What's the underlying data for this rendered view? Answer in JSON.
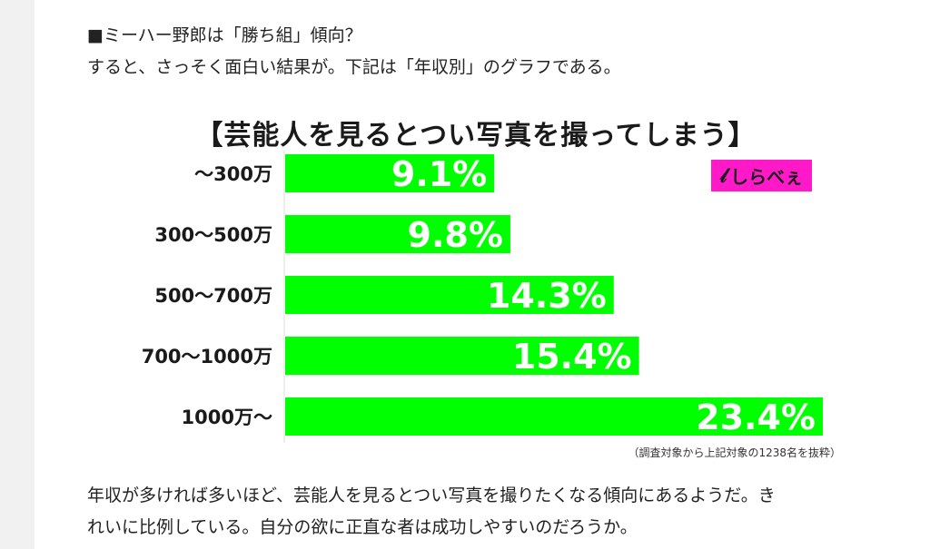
{
  "article": {
    "heading": "■ミーハー野郎は「勝ち組」傾向？",
    "intro": "すると、さっそく面白い結果が。下記は「年収別」のグラフである。",
    "body_line_1": "年収が多ければ多いほど、芸能人を見るとつい写真を撮りたくなる傾向にあるようだ。き",
    "body_line_2": "れいに比例している。自分の欲に正直な者は成功しやすいのだろうか。"
  },
  "logo": {
    "text": "しらべぇ",
    "mark": "ﾑ"
  },
  "chart_data": {
    "type": "bar",
    "orientation": "horizontal",
    "title": "【芸能人を見るとつい写真を撮ってしまう】",
    "categories": [
      "〜300万",
      "300〜500万",
      "500〜700万",
      "700〜1000万",
      "1000万〜"
    ],
    "values": [
      9.1,
      9.8,
      14.3,
      15.4,
      23.4
    ],
    "value_labels": [
      "9.1%",
      "9.8%",
      "14.3%",
      "15.4%",
      "23.4%"
    ],
    "xlim": [
      0,
      23.4
    ],
    "bar_color": "#00ff00",
    "note": "（調査対象から上記対象の1238名を抜粋）",
    "grid": false,
    "legend": "none"
  }
}
